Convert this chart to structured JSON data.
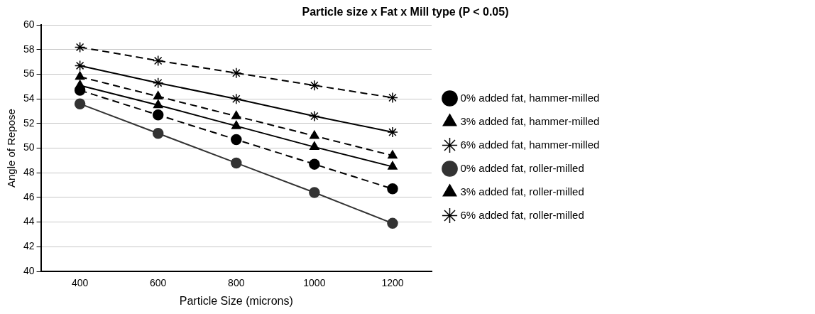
{
  "chart_data": {
    "type": "line",
    "title": "Particle size x Fat x Mill type (P < 0.05)",
    "xlabel": "Particle Size (microns)",
    "ylabel": "Angle of Repose",
    "categories": [
      "400",
      "600",
      "800",
      "1000",
      "1200"
    ],
    "series": [
      {
        "name": "0% added fat, hammer-milled",
        "color": "#000000",
        "marker": "circle",
        "line_style": "dashed",
        "values": [
          54.7,
          52.7,
          50.7,
          48.7,
          46.7
        ]
      },
      {
        "name": "3% added fat, hammer-milled",
        "color": "#000000",
        "marker": "triangle",
        "line_style": "dashed",
        "values": [
          55.8,
          54.2,
          52.6,
          51.0,
          49.4
        ]
      },
      {
        "name": "6% added fat, hammer-milled",
        "color": "#000000",
        "marker": "cross",
        "line_style": "dashed",
        "values": [
          58.2,
          57.1,
          56.1,
          55.1,
          54.1
        ]
      },
      {
        "name": "0% added fat, roller-milled",
        "color": "#333333",
        "marker": "circle",
        "line_style": "solid",
        "values": [
          53.6,
          51.2,
          48.8,
          46.4,
          43.9
        ]
      },
      {
        "name": "3% added fat, roller-milled",
        "color": "#000000",
        "marker": "triangle",
        "line_style": "solid",
        "values": [
          55.1,
          53.5,
          51.8,
          50.1,
          48.5
        ]
      },
      {
        "name": "6% added fat, roller-milled",
        "color": "#000000",
        "marker": "cross",
        "line_style": "solid",
        "values": [
          56.7,
          55.3,
          54.0,
          52.6,
          51.3
        ]
      }
    ],
    "ylim": [
      40,
      60
    ],
    "yticks": [
      40,
      42,
      44,
      46,
      48,
      50,
      52,
      54,
      56,
      58,
      60
    ],
    "grid": "y",
    "legend": "right"
  }
}
